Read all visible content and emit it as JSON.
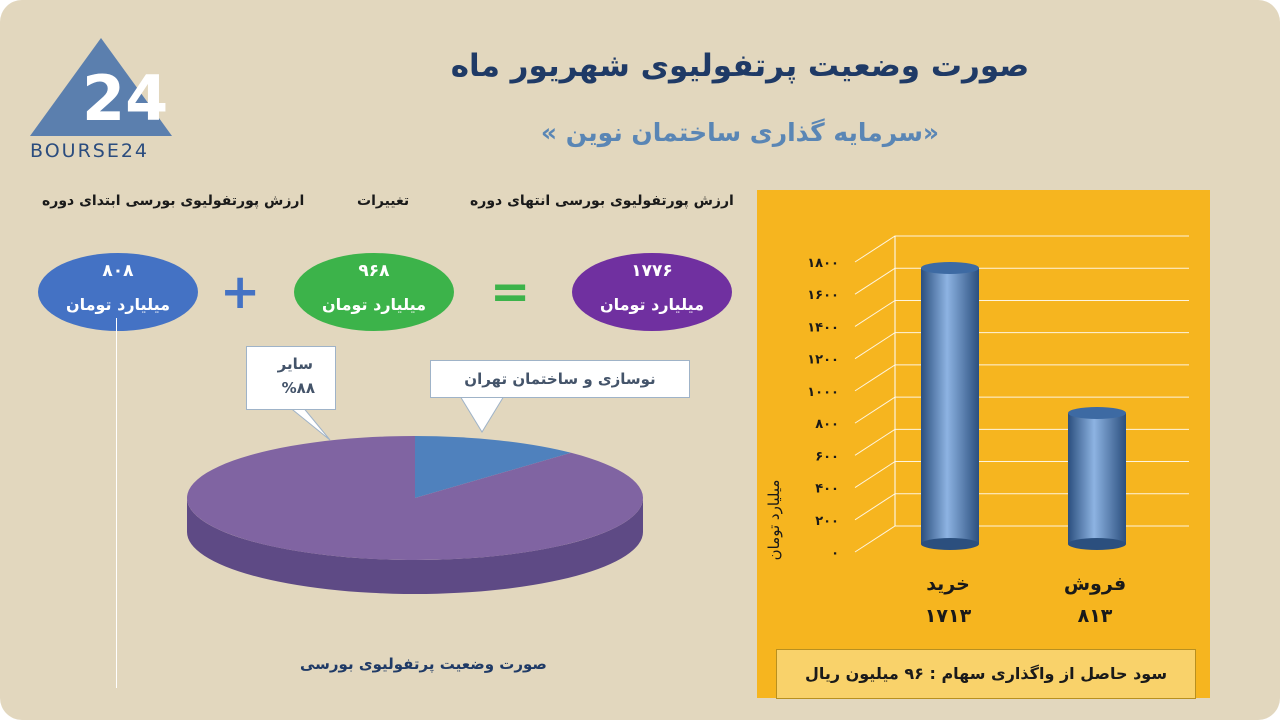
{
  "logo": {
    "text": "BOURSE24",
    "mark": "24"
  },
  "title": "صورت وضعیت پرتفولیوی شهریور ماه",
  "subtitle": "«سرمایه گذاری ساختمان نوین »",
  "headers": {
    "end_value": "ارزش پورتفولیوی بورسی انتهای دوره",
    "changes": "تغییرات",
    "start_value": "ارزش پورتفولیوی بورسی ابتدای دوره"
  },
  "ovals": {
    "end": {
      "value": "۱۷۷۶",
      "unit": "میلیارد تومان",
      "color": "#7030a0"
    },
    "changes": {
      "value": "۹۶۸",
      "unit": "میلیارد تومان",
      "color": "#3cb34a"
    },
    "start": {
      "value": "۸۰۸",
      "unit": "میلیارد تومان",
      "color": "#4472c4"
    }
  },
  "operators": {
    "plus": "+",
    "equals": "="
  },
  "pie": {
    "caption": "صورت وضعیت پرتفولیوی بورسی",
    "callout_other_label": "سایر",
    "callout_other_value": "%۸۸",
    "callout_tehran_label": "نوسازی و ساختمان تهران"
  },
  "bar": {
    "ylabel": "میلیارد تومان",
    "gain_text": "سود حاصل از واگذاری سهام :  ۹۶ میلیون ریال"
  },
  "chart_data": [
    {
      "type": "pie",
      "title": "صورت وضعیت پرتفولیوی بورسی",
      "slices": [
        {
          "label": "سایر",
          "value": 88,
          "color": "#8064a2"
        },
        {
          "label": "نوسازی و ساختمان تهران",
          "value": 12,
          "color": "#4f81bd"
        }
      ]
    },
    {
      "type": "bar",
      "categories": [
        "خرید",
        "فروش"
      ],
      "values": [
        1713,
        813
      ],
      "value_labels": [
        "۱۷۱۳",
        "۸۱۳"
      ],
      "ylabel": "میلیارد تومان",
      "ylim": [
        0,
        1800
      ],
      "yticks": [
        0,
        200,
        400,
        600,
        800,
        1000,
        1200,
        1400,
        1600,
        1800
      ],
      "ytick_labels": [
        "۰",
        "۲۰۰",
        "۴۰۰",
        "۶۰۰",
        "۸۰۰",
        "۱۰۰۰",
        "۱۲۰۰",
        "۱۴۰۰",
        "۱۶۰۰",
        "۱۸۰۰"
      ],
      "grid": true,
      "colors": {
        "bar": "#4f81bd",
        "background": "#f6b51f"
      }
    }
  ]
}
